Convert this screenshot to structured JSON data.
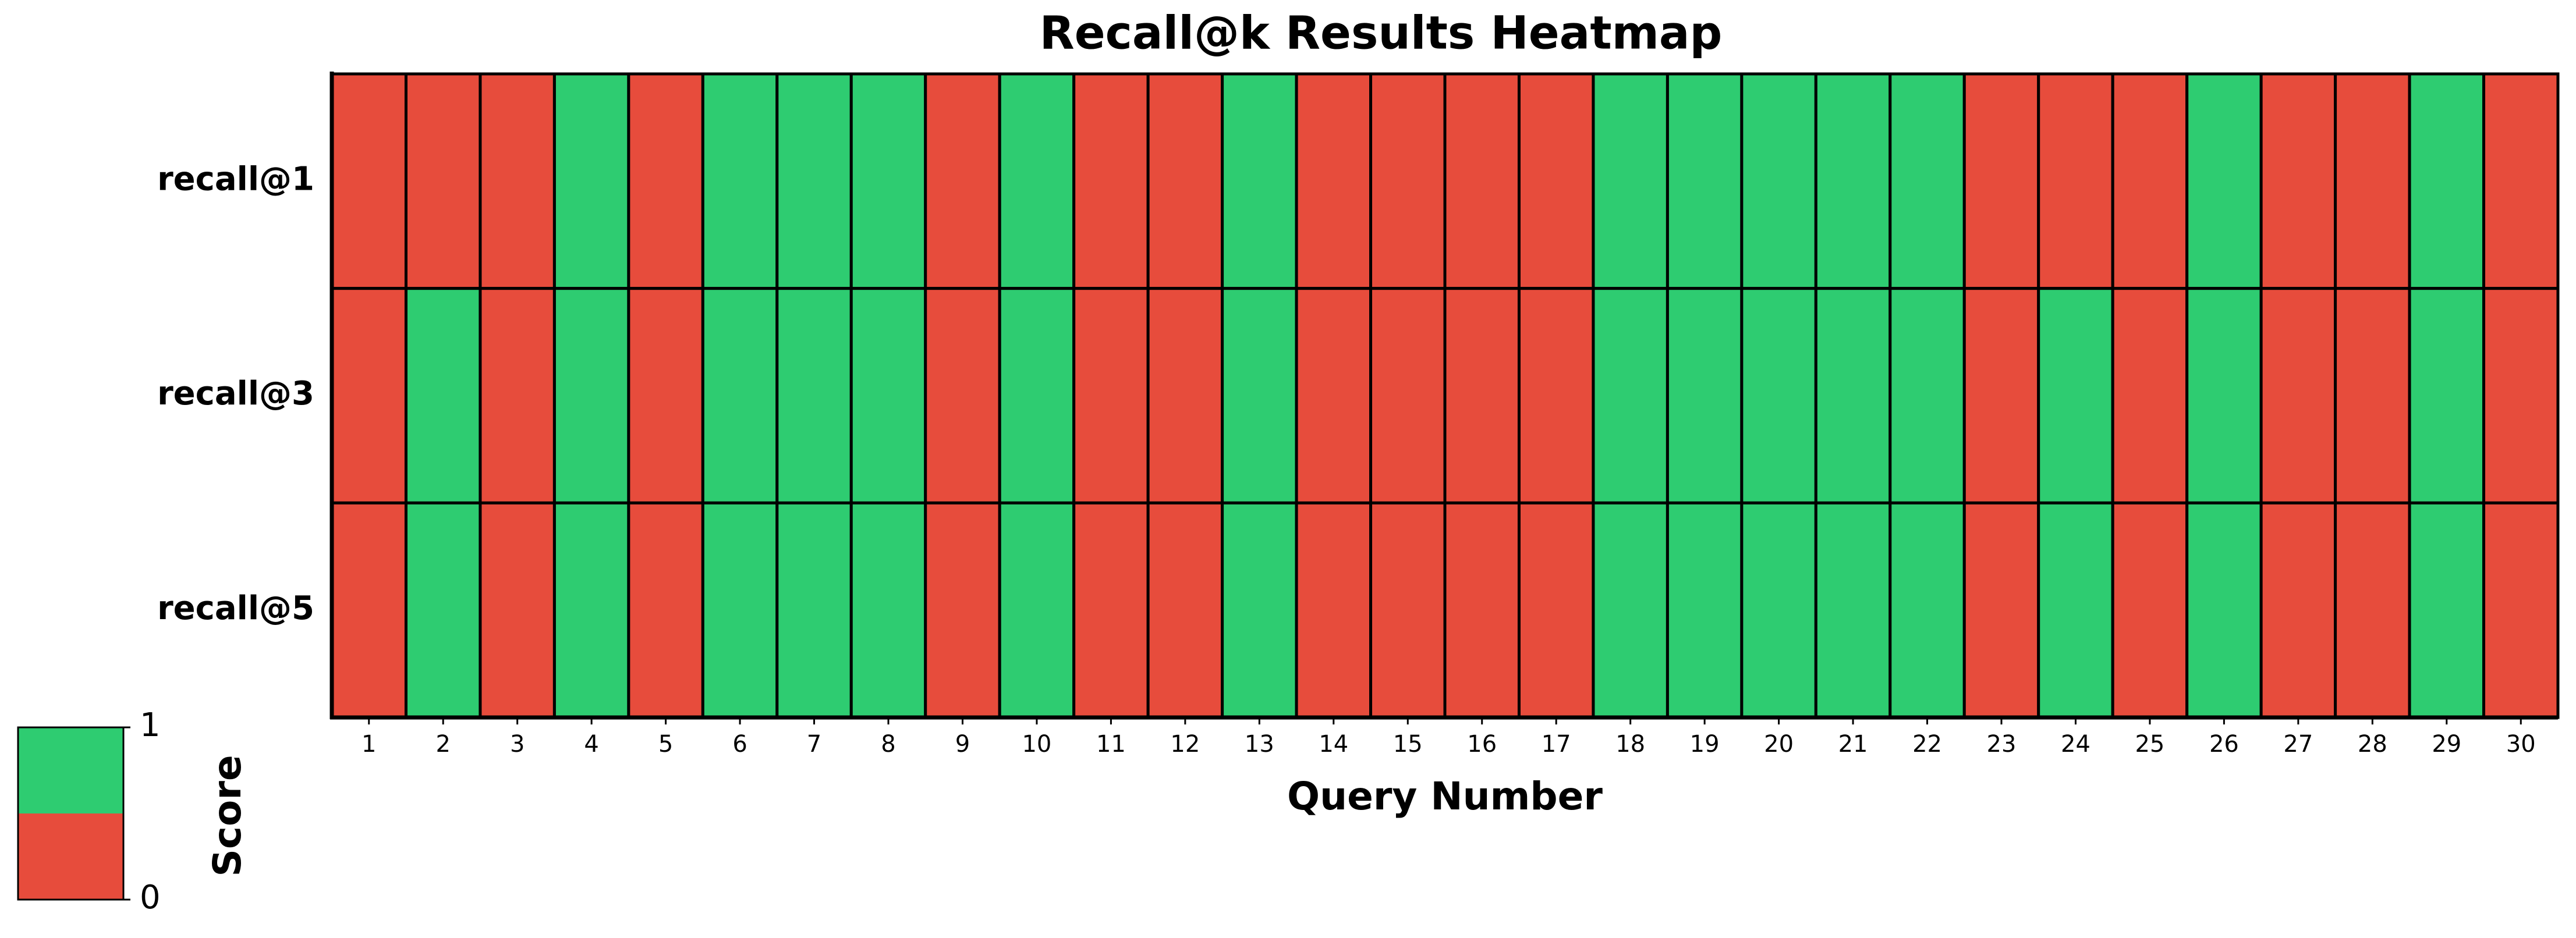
{
  "chart_data": {
    "type": "heatmap",
    "title": "Recall@k Results Heatmap",
    "x_label": "Query Number",
    "x": [
      1,
      2,
      3,
      4,
      5,
      6,
      7,
      8,
      9,
      10,
      11,
      12,
      13,
      14,
      15,
      16,
      17,
      18,
      19,
      20,
      21,
      22,
      23,
      24,
      25,
      26,
      27,
      28,
      29,
      30
    ],
    "series": [
      {
        "name": "recall@1",
        "values": [
          0,
          0,
          0,
          1,
          0,
          1,
          1,
          1,
          0,
          1,
          0,
          0,
          1,
          0,
          0,
          0,
          0,
          1,
          1,
          1,
          1,
          1,
          0,
          0,
          0,
          1,
          0,
          0,
          1,
          0
        ]
      },
      {
        "name": "recall@3",
        "values": [
          0,
          1,
          0,
          1,
          0,
          1,
          1,
          1,
          0,
          1,
          0,
          0,
          1,
          0,
          0,
          0,
          0,
          1,
          1,
          1,
          1,
          1,
          0,
          1,
          0,
          1,
          0,
          0,
          1,
          0
        ]
      },
      {
        "name": "recall@5",
        "values": [
          0,
          1,
          0,
          1,
          0,
          1,
          1,
          1,
          0,
          1,
          0,
          0,
          1,
          0,
          0,
          0,
          0,
          1,
          1,
          1,
          1,
          1,
          0,
          1,
          0,
          1,
          0,
          0,
          1,
          0
        ]
      }
    ],
    "colors": [
      "#e74c3c",
      "#2ecc71"
    ],
    "colorbar": {
      "label": "Score",
      "lim": [
        0,
        1
      ],
      "ticks": [
        0,
        1
      ]
    }
  }
}
